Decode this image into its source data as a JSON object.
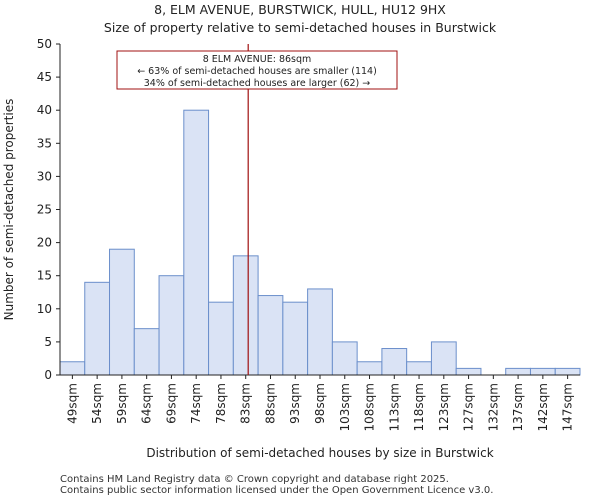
{
  "chart_data": {
    "type": "bar",
    "title": "8, ELM AVENUE, BURSTWICK, HULL, HU12 9HX",
    "subtitle": "Size of property relative to semi-detached houses in Burstwick",
    "xlabel": "Distribution of semi-detached houses by size in Burstwick",
    "ylabel": "Number of semi-detached properties",
    "categories": [
      "49sqm",
      "54sqm",
      "59sqm",
      "64sqm",
      "69sqm",
      "74sqm",
      "78sqm",
      "83sqm",
      "88sqm",
      "93sqm",
      "98sqm",
      "103sqm",
      "108sqm",
      "113sqm",
      "118sqm",
      "123sqm",
      "127sqm",
      "132sqm",
      "137sqm",
      "142sqm",
      "147sqm"
    ],
    "values": [
      2,
      14,
      19,
      7,
      15,
      40,
      11,
      18,
      12,
      11,
      13,
      5,
      2,
      4,
      2,
      5,
      1,
      0,
      1,
      1,
      1
    ],
    "ylim": [
      0,
      50
    ],
    "yticks": [
      0,
      5,
      10,
      15,
      20,
      25,
      30,
      35,
      40,
      45,
      50
    ],
    "marker": {
      "value_bin_position": 7.6,
      "label": "8 ELM AVENUE: 86sqm"
    },
    "annotation": {
      "line1": "8 ELM AVENUE: 86sqm",
      "line2": "← 63% of semi-detached houses are smaller (114)",
      "line3": "34% of semi-detached houses are larger (62) →"
    },
    "colors": {
      "bar_fill": "#dae3f5",
      "bar_stroke": "#6b8fcb",
      "marker": "#a01010",
      "axis": "#222222"
    }
  },
  "footer": {
    "line1": "Contains HM Land Registry data © Crown copyright and database right 2025.",
    "line2": "Contains public sector information licensed under the Open Government Licence v3.0."
  }
}
